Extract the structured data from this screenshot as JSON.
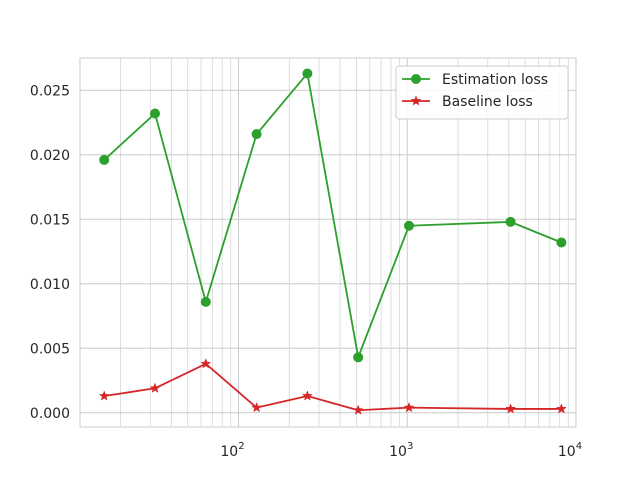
{
  "chart_data": {
    "type": "line",
    "xscale": "log",
    "xlim": [
      11.5,
      10000
    ],
    "ylim": [
      -0.0011,
      0.0275
    ],
    "grid": true,
    "legend_position": "top-right",
    "x_ticks": [
      {
        "value": 100,
        "base": "10",
        "exp": "2"
      },
      {
        "value": 1000,
        "base": "10",
        "exp": "3"
      },
      {
        "value": 10000,
        "base": "10",
        "exp": "4"
      }
    ],
    "y_ticks": [
      {
        "value": 0.0,
        "label": "0.000"
      },
      {
        "value": 0.005,
        "label": "0.005"
      },
      {
        "value": 0.01,
        "label": "0.010"
      },
      {
        "value": 0.015,
        "label": "0.015"
      },
      {
        "value": 0.02,
        "label": "0.020"
      },
      {
        "value": 0.025,
        "label": "0.025"
      }
    ],
    "series": [
      {
        "name": "Estimation loss",
        "color": "#2ca02c",
        "marker": "circle",
        "points": [
          {
            "x": 16,
            "y": 0.0196
          },
          {
            "x": 32,
            "y": 0.0232
          },
          {
            "x": 64,
            "y": 0.0086
          },
          {
            "x": 128,
            "y": 0.0216
          },
          {
            "x": 256,
            "y": 0.0263
          },
          {
            "x": 512,
            "y": 0.0043
          },
          {
            "x": 1024,
            "y": 0.0145
          },
          {
            "x": 4096,
            "y": 0.0148
          },
          {
            "x": 8192,
            "y": 0.0132
          }
        ]
      },
      {
        "name": "Baseline loss",
        "color": "#d62728",
        "marker": "star",
        "points": [
          {
            "x": 16,
            "y": 0.0013
          },
          {
            "x": 32,
            "y": 0.0019
          },
          {
            "x": 64,
            "y": 0.0038
          },
          {
            "x": 128,
            "y": 0.0004
          },
          {
            "x": 256,
            "y": 0.0013
          },
          {
            "x": 512,
            "y": 0.0002
          },
          {
            "x": 1024,
            "y": 0.0004
          },
          {
            "x": 4096,
            "y": 0.0003
          },
          {
            "x": 8192,
            "y": 0.0003
          }
        ]
      }
    ]
  }
}
